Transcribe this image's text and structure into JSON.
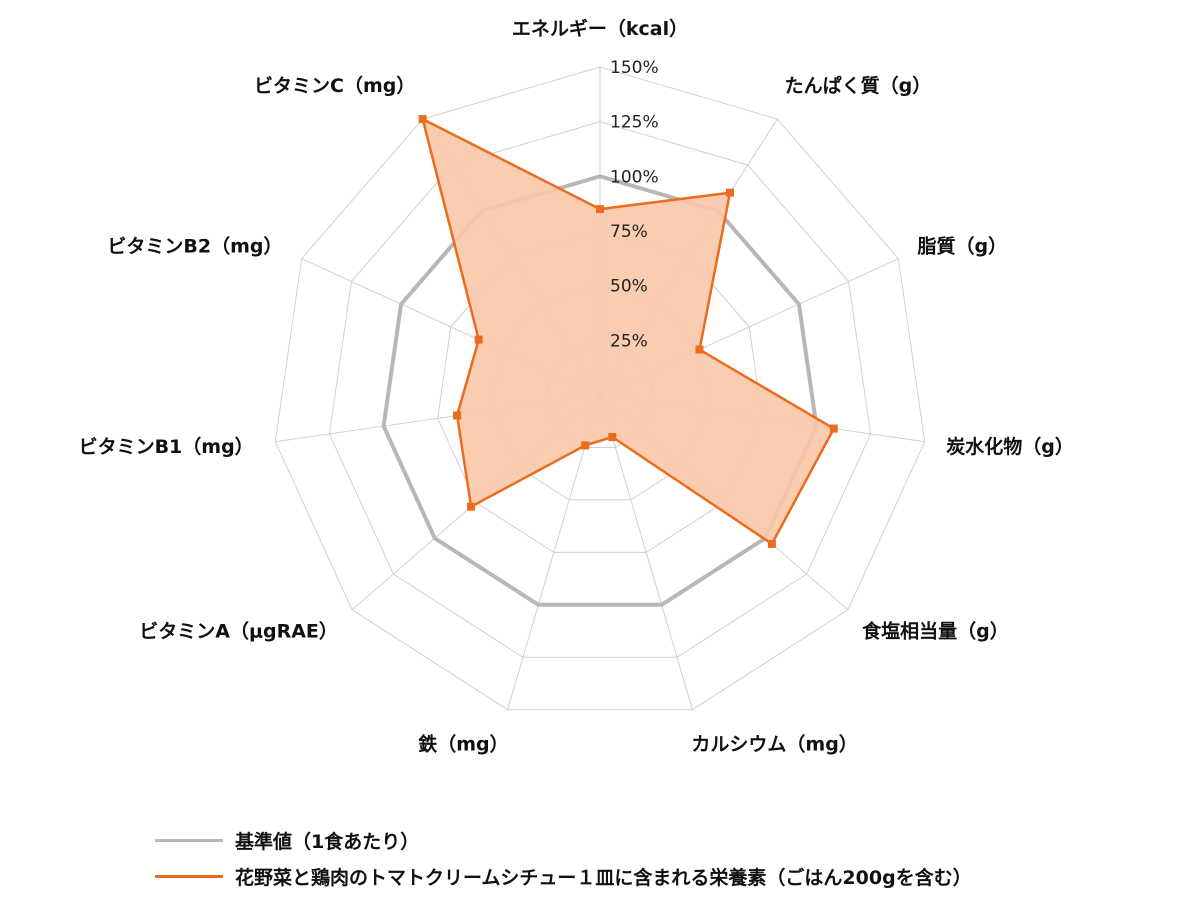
{
  "chart_data": {
    "type": "radar",
    "axes": [
      "エネルギー（kcal）",
      "たんぱく質（g）",
      "脂質（g）",
      "炭水化物（g）",
      "食塩相当量（g）",
      "カルシウム（mg）",
      "鉄（mg）",
      "ビタミンA（μgRAE）",
      "ビタミンB1（mg）",
      "ビタミンB2（mg）",
      "ビタミンC（mg）"
    ],
    "rlim": [
      0,
      150
    ],
    "ticks": [
      0,
      25,
      50,
      75,
      100,
      125,
      150
    ],
    "tick_labels": [
      "",
      "25%",
      "50%",
      "75%",
      "100%",
      "125%",
      "150%"
    ],
    "series": [
      {
        "name": "基準値（1食あたり）",
        "color": "#b7b7b7",
        "values": [
          100,
          100,
          100,
          100,
          100,
          100,
          100,
          100,
          100,
          100,
          100
        ]
      },
      {
        "name": "花野菜と鶏肉のトマトクリームシチュー１皿に含まれる栄養素（ごはん200gを含む）",
        "color": "#ec6c1f",
        "fill": "#f9c8a8",
        "values": [
          85,
          110,
          50,
          108,
          104,
          20,
          24,
          78,
          66,
          61,
          150
        ]
      }
    ],
    "legend_position": "bottom-left"
  }
}
